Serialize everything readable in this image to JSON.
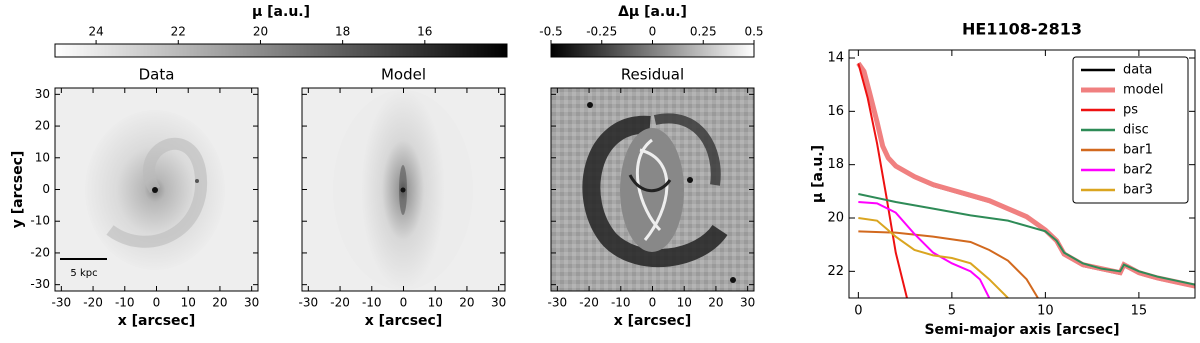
{
  "chart_data": [
    {
      "type": "colorbar",
      "label": "μ [a.u.]",
      "xlim": [
        25,
        14
      ],
      "xticks": [
        24,
        22,
        20,
        18,
        16
      ],
      "cmap": [
        "#ffffff",
        "#000000"
      ]
    },
    {
      "type": "colorbar",
      "label": "Δμ [a.u.]",
      "xlim": [
        -0.5,
        0.5
      ],
      "xticks": [
        -0.5,
        -0.25,
        0,
        0.25,
        0.5
      ],
      "cmap": [
        "#000000",
        "#ffffff"
      ]
    },
    {
      "type": "image",
      "title": "Data",
      "xlabel": "x [arcsec]",
      "ylabel": "y [arcsec]",
      "annotation": "5 kpc",
      "xlim": [
        -32,
        32
      ],
      "ylim": [
        -32,
        32
      ],
      "xticks": [
        -30,
        -20,
        -10,
        0,
        10,
        20,
        30
      ],
      "yticks": [
        -30,
        -20,
        -10,
        0,
        10,
        20,
        30
      ]
    },
    {
      "type": "image",
      "title": "Model",
      "xlabel": "x [arcsec]",
      "xlim": [
        -32,
        32
      ],
      "ylim": [
        -32,
        32
      ],
      "xticks": [
        -30,
        -20,
        -10,
        0,
        10,
        20,
        30
      ]
    },
    {
      "type": "image",
      "title": "Residual",
      "xlabel": "x [arcsec]",
      "xlim": [
        -32,
        32
      ],
      "ylim": [
        -32,
        32
      ],
      "xticks": [
        -30,
        -20,
        -10,
        0,
        10,
        20,
        30
      ]
    },
    {
      "type": "line",
      "title": "HE1108-2813",
      "xlabel": "Semi-major axis [arcsec]",
      "ylabel": "μ [a.u.]",
      "xlim": [
        -0.5,
        18
      ],
      "ylim": [
        23,
        13.7
      ],
      "xticks": [
        0,
        5,
        10,
        15
      ],
      "yticks": [
        14,
        16,
        18,
        20,
        22
      ],
      "legend": "upper right",
      "series": [
        {
          "name": "data",
          "color": "#000000",
          "x": [
            0,
            0.3,
            0.6,
            1,
            1.3,
            1.6,
            2,
            3,
            4,
            5,
            6,
            7,
            8,
            9,
            10,
            10.6,
            11,
            12,
            13,
            14,
            14.2,
            15,
            16,
            17,
            18
          ],
          "values": [
            14.2,
            14.5,
            15.3,
            16.4,
            17.3,
            17.8,
            18.1,
            18.5,
            18.8,
            19.0,
            19.2,
            19.4,
            19.7,
            20.0,
            20.5,
            20.9,
            21.4,
            21.8,
            21.95,
            22.1,
            21.8,
            22.1,
            22.3,
            22.45,
            22.6
          ]
        },
        {
          "name": "model",
          "color": "#f08080",
          "x": [
            0,
            0.3,
            0.6,
            1,
            1.3,
            1.6,
            2,
            3,
            4,
            5,
            6,
            7,
            8,
            9,
            10,
            10.6,
            11,
            12,
            13,
            14,
            14.2,
            15,
            16,
            17,
            18
          ],
          "values": [
            14.2,
            14.5,
            15.3,
            16.4,
            17.3,
            17.75,
            18.05,
            18.45,
            18.75,
            18.95,
            19.15,
            19.35,
            19.65,
            19.95,
            20.45,
            20.85,
            21.35,
            21.75,
            21.9,
            22.05,
            21.75,
            22.05,
            22.25,
            22.4,
            22.55
          ]
        },
        {
          "name": "ps",
          "color": "#ee1111",
          "x": [
            0,
            0.5,
            1,
            1.5,
            2,
            2.6
          ],
          "values": [
            14.2,
            15.5,
            17.2,
            19.2,
            21.3,
            23
          ]
        },
        {
          "name": "disc",
          "color": "#2e8b57",
          "x": [
            0,
            2,
            4,
            6,
            8,
            10,
            10.6,
            11,
            12,
            13,
            14,
            14.2,
            15,
            16,
            17,
            18
          ],
          "values": [
            19.1,
            19.4,
            19.65,
            19.9,
            20.1,
            20.5,
            20.85,
            21.3,
            21.7,
            21.9,
            22.0,
            21.75,
            22.0,
            22.2,
            22.35,
            22.5
          ]
        },
        {
          "name": "bar1",
          "color": "#d2691e",
          "x": [
            0,
            2,
            4,
            6,
            7,
            8,
            9,
            9.6
          ],
          "values": [
            20.5,
            20.55,
            20.7,
            20.9,
            21.2,
            21.6,
            22.3,
            23
          ]
        },
        {
          "name": "bar2",
          "color": "#ff00ff",
          "x": [
            0,
            1,
            2,
            3,
            4,
            5,
            6,
            6.5,
            7
          ],
          "values": [
            19.4,
            19.45,
            19.8,
            20.6,
            21.3,
            21.7,
            22.0,
            22.3,
            23
          ]
        },
        {
          "name": "bar3",
          "color": "#daa520",
          "x": [
            0,
            1,
            2,
            3,
            4,
            5,
            6,
            7,
            8
          ],
          "values": [
            20.0,
            20.1,
            20.7,
            21.2,
            21.4,
            21.5,
            21.7,
            22.3,
            23
          ]
        }
      ]
    }
  ]
}
